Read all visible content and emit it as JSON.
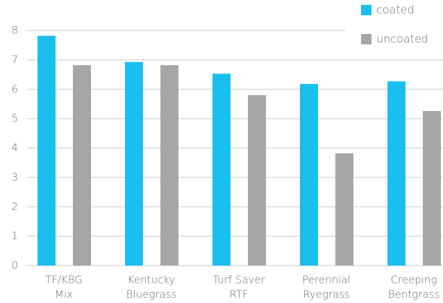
{
  "chart_data": {
    "type": "bar",
    "categories": [
      [
        "TF/KBG",
        "Mix"
      ],
      [
        "Kentucky",
        "Bluegrass"
      ],
      [
        "Turf Saver",
        "RTF"
      ],
      [
        "Perennial",
        "Ryegrass"
      ],
      [
        "Creeping",
        "Bentgrass"
      ]
    ],
    "series": [
      {
        "name": "coated",
        "color": "#1bbfef",
        "values": [
          7.82,
          6.93,
          6.53,
          6.18,
          6.27
        ]
      },
      {
        "name": "uncoated",
        "color": "#a6a6a7",
        "values": [
          6.82,
          6.82,
          5.8,
          3.82,
          5.26
        ]
      }
    ],
    "ylim": [
      0,
      8
    ],
    "yticks": [
      0,
      1,
      2,
      3,
      4,
      5,
      6,
      7,
      8
    ],
    "grid": true,
    "legend": "upper right"
  }
}
